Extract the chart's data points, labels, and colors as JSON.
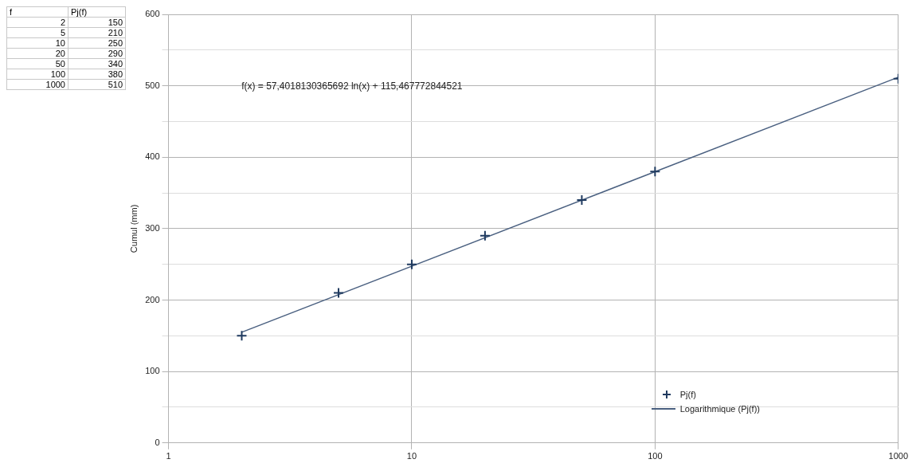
{
  "chart_data": [
    {
      "type": "other",
      "annotations": [
        "f",
        "Pj(f)",
        "2",
        "150",
        "5",
        "210",
        "10",
        "250",
        "20",
        "290",
        "50",
        "340",
        "100",
        "380",
        "1000",
        "510"
      ]
    },
    {
      "type": "scatter",
      "ylabel": "Cumul (mm)",
      "log": "x",
      "grid": true,
      "legend": "bottom right",
      "xlim": [
        1,
        1000
      ],
      "xticks": [
        1,
        10,
        100,
        1000
      ],
      "ylim": [
        0,
        600
      ],
      "yticks": [
        0,
        {
          "value": 50,
          "label": null
        },
        100,
        {
          "value": 150,
          "label": null
        },
        200,
        {
          "value": 250,
          "label": null
        },
        300,
        {
          "value": 350,
          "label": null
        },
        400,
        {
          "value": 450,
          "label": null
        },
        500,
        {
          "value": 550,
          "label": null
        },
        600
      ],
      "annotations": [
        "f(x) = 57,4018130365692 ln(x) + 115,467772844521"
      ],
      "series": [
        {
          "name": "Pj(f)",
          "type": "scatter",
          "marker": "cross",
          "color": "#1f3a5f",
          "x": [
            2,
            5,
            10,
            20,
            50,
            100,
            1000
          ],
          "values": [
            150,
            210,
            250,
            290,
            340,
            380,
            510
          ]
        },
        {
          "name": "Logarithmique (Pj(f))",
          "type": "line",
          "marker": "none",
          "line_style": "solid",
          "color": "#4a6080",
          "x": [
            2,
            1000
          ],
          "values": [
            155,
            512
          ]
        }
      ]
    }
  ]
}
